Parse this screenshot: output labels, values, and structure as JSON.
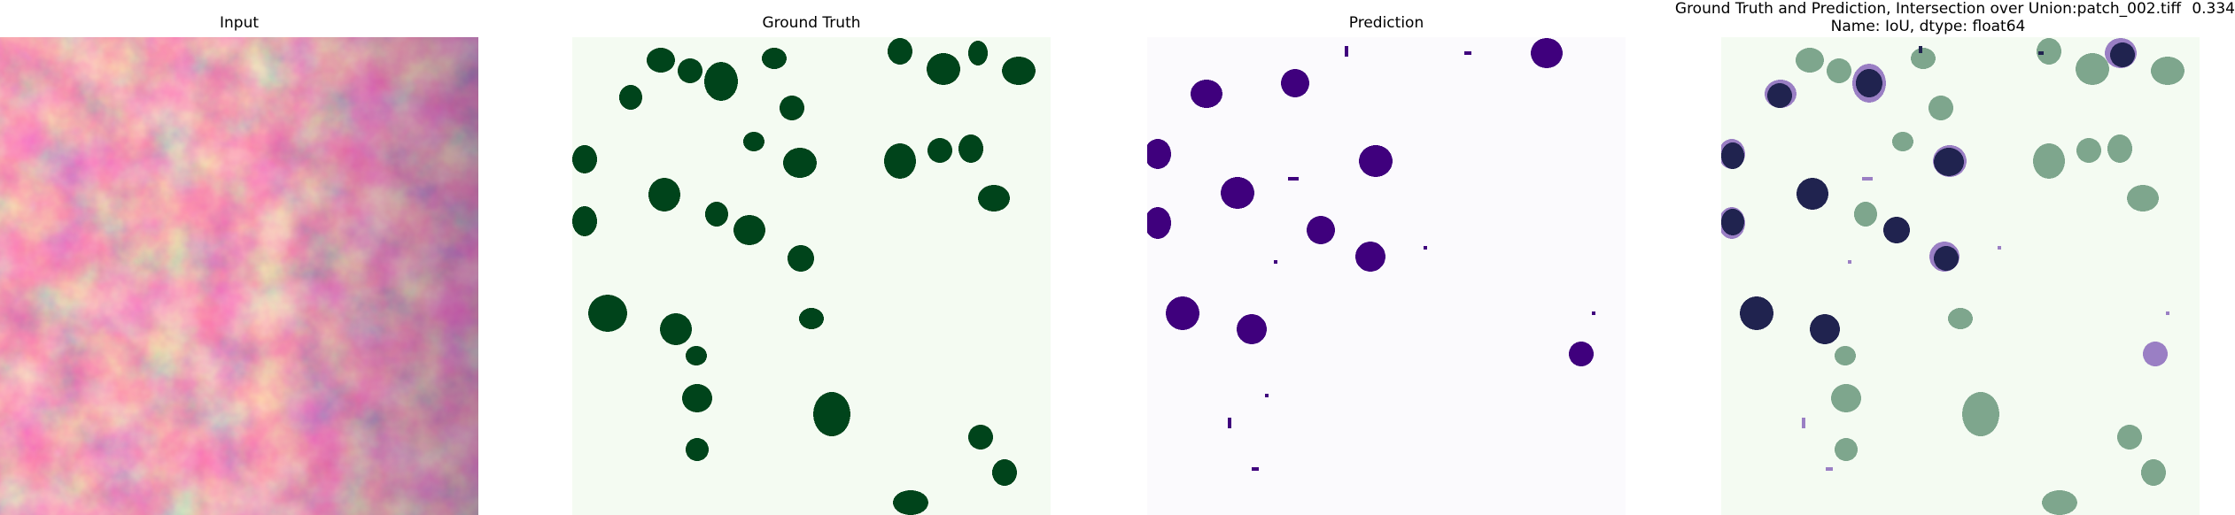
{
  "panels": {
    "input": {
      "title": "Input"
    },
    "ground_truth": {
      "title": "Ground Truth"
    },
    "prediction": {
      "title": "Prediction"
    },
    "overlay": {
      "title_line1": "Ground Truth and Prediction, Intersection over Union:patch_002.tiff",
      "score": "0.334",
      "title_line2": "Name: IoU, dtype: float64"
    }
  },
  "colors": {
    "gt_background": "#f4fbf2",
    "gt_blob": "#00441b",
    "pred_background": "#fbfafd",
    "pred_blob": "#3f007d",
    "overlay_gt": "#7ea68d",
    "overlay_pred": "#9a7fc4",
    "overlay_both": "#20234f"
  }
}
